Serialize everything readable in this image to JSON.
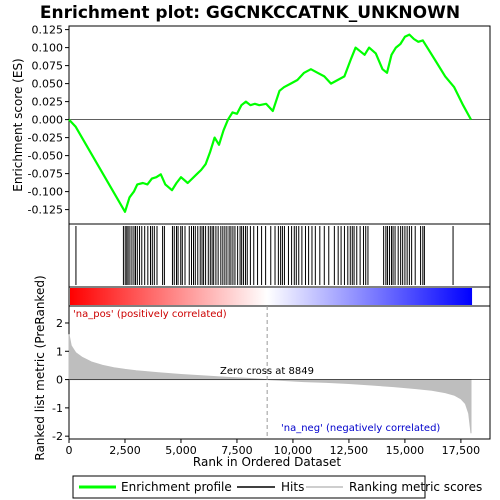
{
  "chart_data": {
    "type": "line",
    "title": "Enrichment plot: GGCNKCCATNK_UNKNOWN",
    "panels": [
      {
        "name": "enrichment",
        "ylabel": "Enrichment score (ES)",
        "ylim": [
          -0.145,
          0.13
        ],
        "yticks": [
          0.125,
          0.1,
          0.075,
          0.05,
          0.025,
          0.0,
          -0.025,
          -0.05,
          -0.075,
          -0.1,
          -0.125
        ],
        "ytick_labels": [
          "0.125",
          "0.100",
          "0.075",
          "0.050",
          "0.025",
          "0.000",
          "-0.025",
          "-0.050",
          "-0.075",
          "-0.100",
          "-0.125"
        ],
        "series": [
          {
            "name": "Enrichment profile",
            "color": "#00ff00",
            "x": [
              0,
              300,
              2500,
              2700,
              2900,
              3050,
              3300,
              3500,
              3700,
              3900,
              4100,
              4300,
              4600,
              4800,
              5000,
              5300,
              5500,
              5700,
              5900,
              6100,
              6300,
              6500,
              6700,
              6900,
              7100,
              7300,
              7500,
              7700,
              7900,
              8100,
              8300,
              8500,
              8800,
              9100,
              9400,
              9600,
              9900,
              10200,
              10500,
              10800,
              11100,
              11400,
              11700,
              12000,
              12300,
              12600,
              12800,
              13000,
              13200,
              13400,
              13700,
              14000,
              14200,
              14400,
              14600,
              14800,
              15000,
              15200,
              15400,
              15600,
              15800,
              16000,
              16400,
              16800,
              17200,
              17600,
              17950
            ],
            "y": [
              0.0,
              -0.01,
              -0.128,
              -0.108,
              -0.1,
              -0.09,
              -0.088,
              -0.09,
              -0.082,
              -0.08,
              -0.076,
              -0.09,
              -0.098,
              -0.088,
              -0.08,
              -0.088,
              -0.082,
              -0.076,
              -0.07,
              -0.062,
              -0.045,
              -0.025,
              -0.035,
              -0.015,
              0.0,
              0.01,
              0.008,
              0.02,
              0.025,
              0.02,
              0.022,
              0.02,
              0.022,
              0.012,
              0.04,
              0.045,
              0.05,
              0.055,
              0.065,
              0.07,
              0.065,
              0.06,
              0.05,
              0.055,
              0.06,
              0.085,
              0.1,
              0.095,
              0.09,
              0.1,
              0.092,
              0.07,
              0.065,
              0.09,
              0.1,
              0.105,
              0.115,
              0.118,
              0.112,
              0.108,
              0.11,
              0.1,
              0.08,
              0.06,
              0.045,
              0.02,
              0.0
            ]
          }
        ]
      },
      {
        "name": "hits",
        "series_name": "Hits",
        "hit_ranks": [
          310,
          2430,
          2510,
          2580,
          2640,
          2720,
          2810,
          2900,
          2970,
          3050,
          3150,
          3250,
          3380,
          3520,
          3640,
          3720,
          3810,
          3930,
          4180,
          4260,
          4620,
          4700,
          4800,
          4870,
          4990,
          5060,
          5180,
          5370,
          5470,
          5560,
          5640,
          5750,
          5860,
          5940,
          6010,
          6100,
          6220,
          6310,
          6390,
          6460,
          6560,
          6660,
          6780,
          6870,
          6960,
          7050,
          7150,
          7230,
          7320,
          7410,
          7530,
          7640,
          7710,
          7790,
          7880,
          7960,
          8100,
          8250,
          8420,
          8600,
          8780,
          9010,
          9200,
          9350,
          9450,
          9530,
          9620,
          9800,
          9940,
          10060,
          10150,
          10260,
          10400,
          10560,
          10700,
          10850,
          11000,
          11200,
          11400,
          11600,
          11850,
          12020,
          12150,
          12300,
          12450,
          12560,
          12650,
          12730,
          12850,
          13000,
          13150,
          13250,
          13350,
          14050,
          14150,
          14220,
          14310,
          14400,
          14470,
          14560,
          14700,
          14810,
          14900,
          15000,
          15100,
          15200,
          15300,
          15460,
          15700,
          15800,
          15870,
          17150
        ]
      },
      {
        "name": "ranking_bar",
        "gradient_colors": [
          "#ff0000",
          "#ffffff",
          "#0000ff"
        ],
        "zero_cross_fraction": 0.493
      },
      {
        "name": "ranked_metric",
        "ylabel": "Ranked list metric (PreRanked)",
        "xlabel": "Rank in Ordered Dataset",
        "ylim": [
          -2.1,
          2.6
        ],
        "yticks": [
          2,
          1,
          0,
          -1,
          -2
        ],
        "ytick_labels": [
          "2",
          "1",
          "0",
          "-1",
          "-2"
        ],
        "series_name": "Ranking metric scores",
        "color": "#bebebe",
        "x": [
          0,
          100,
          300,
          600,
          1000,
          1500,
          2000,
          2500,
          3000,
          4000,
          5000,
          6000,
          7000,
          8000,
          8849,
          9500,
          10500,
          11500,
          12500,
          13500,
          14500,
          15500,
          16200,
          16800,
          17200,
          17500,
          17700,
          17850,
          17950
        ],
        "y": [
          1.6,
          1.2,
          0.95,
          0.78,
          0.62,
          0.5,
          0.42,
          0.36,
          0.31,
          0.24,
          0.18,
          0.13,
          0.08,
          0.04,
          0.0,
          -0.03,
          -0.07,
          -0.1,
          -0.14,
          -0.19,
          -0.25,
          -0.32,
          -0.38,
          -0.46,
          -0.55,
          -0.68,
          -0.85,
          -1.2,
          -1.9
        ],
        "annotations": [
          "Zero cross at 8849",
          "'na_pos' (positively correlated)",
          "'na_neg' (negatively correlated)"
        ],
        "zero_cross": 8849
      }
    ],
    "xlim": [
      0,
      18800
    ],
    "xticks": [
      0,
      2500,
      5000,
      7500,
      10000,
      12500,
      15000,
      17500
    ],
    "xtick_labels": [
      "0",
      "2,500",
      "5,000",
      "7,500",
      "10,000",
      "12,500",
      "15,000",
      "17,500"
    ],
    "legend": {
      "placement": "bottom",
      "entries": [
        "Enrichment profile",
        "Hits",
        "Ranking metric scores"
      ]
    }
  }
}
